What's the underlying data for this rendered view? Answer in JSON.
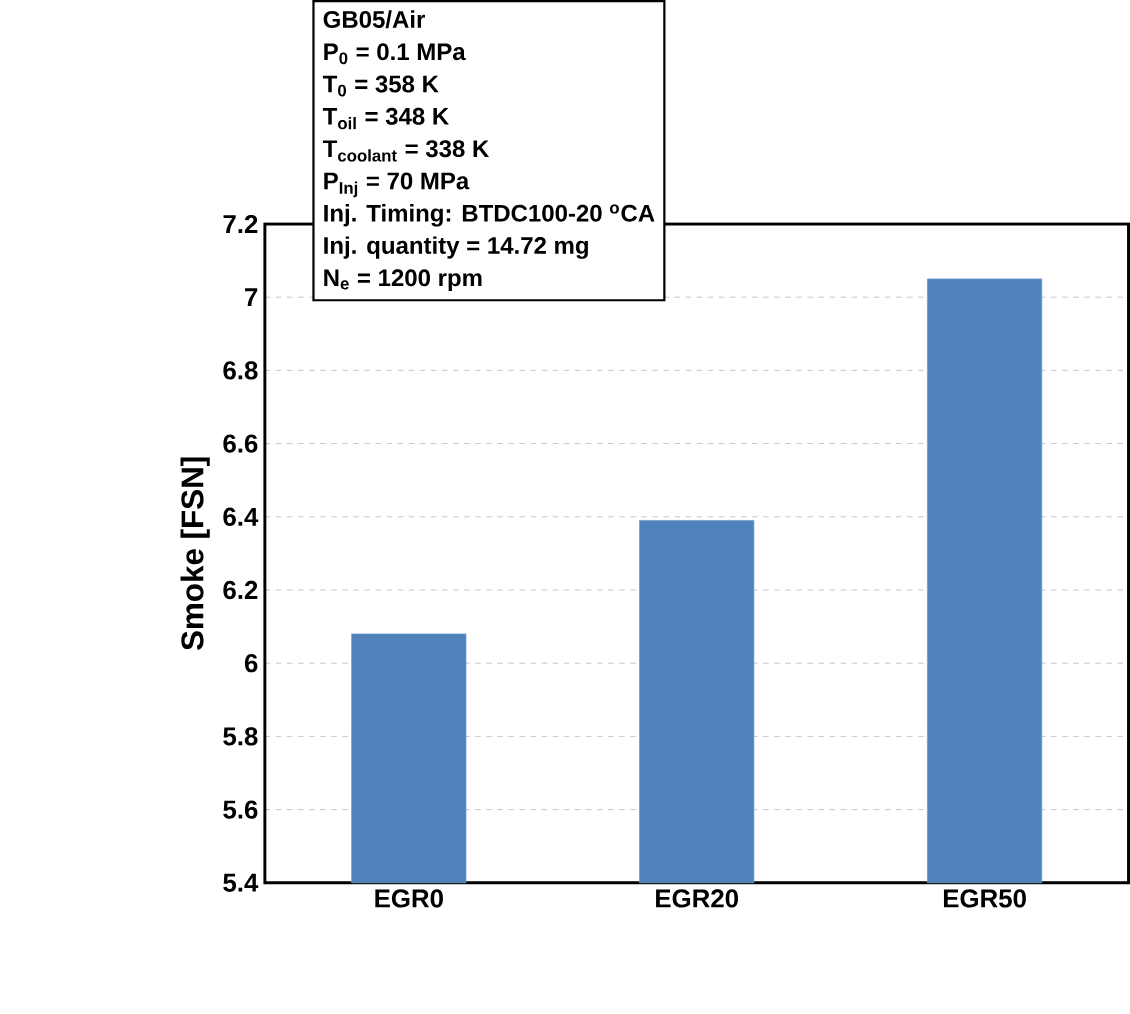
{
  "chart_data": {
    "type": "bar",
    "ylabel": "Smoke [FSN]",
    "categories": [
      "EGR0",
      "EGR20",
      "EGR50"
    ],
    "values": [
      6.08,
      6.39,
      7.05
    ],
    "color": "#4f81bd",
    "ylim": [
      5.4,
      7.2
    ],
    "yticks": [
      5.4,
      5.6,
      5.8,
      6,
      6.2,
      6.4,
      6.6,
      6.8,
      7,
      7.2
    ],
    "grid": "y",
    "annotations": [
      "GB05/Air",
      "P$_{0}$ = 0.1 MPa",
      "T$_{0}$ = 358 K",
      "T$_{oil}$ = 348 K",
      "T$_{coolant}$ = 338 K",
      "P$_{Inj}$ = 70 MPa",
      "Inj. Timing:  BTDC100-20 $^{o}$CA",
      "Inj. quantity = 14.72 mg",
      "N$_{e}$ = 1200 rpm"
    ]
  }
}
